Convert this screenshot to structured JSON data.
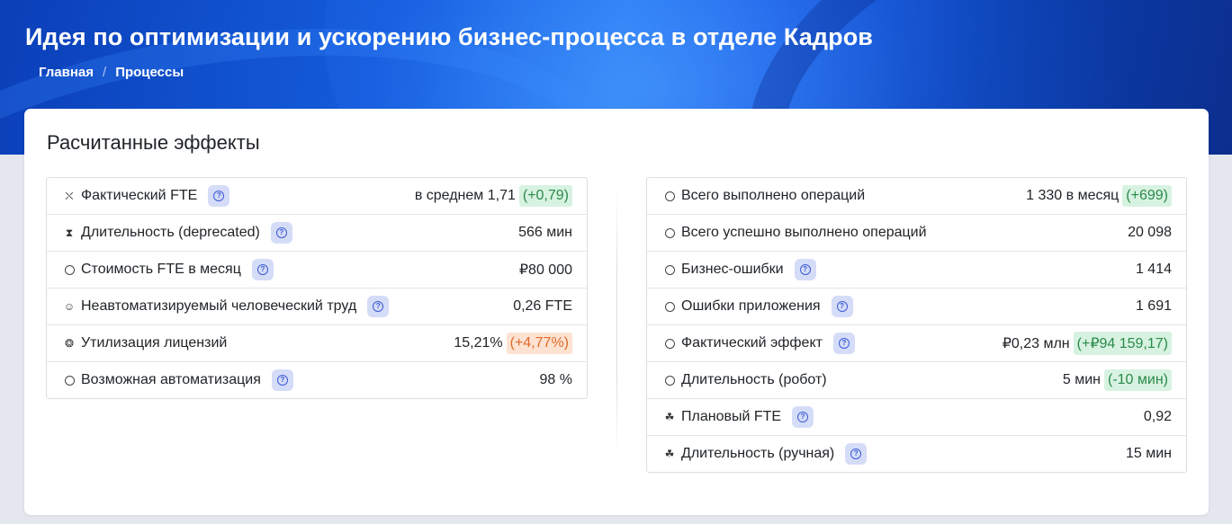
{
  "header": {
    "title": "Идея по оптимизации и ускорению бизнес-процесса в отделе Кадров",
    "breadcrumb": [
      "Главная",
      "/",
      "Процессы"
    ]
  },
  "card": {
    "title": "Расчитанные эффекты"
  },
  "left_metrics": [
    {
      "icon": "fte-icon",
      "label": "Фактический FTE",
      "help": true,
      "value": "в среднем 1,71",
      "delta": "(+0,79)",
      "delta_color": "green"
    },
    {
      "icon": "hourglass-icon",
      "label": "Длительность (deprecated)",
      "help": true,
      "value": "566  мин"
    },
    {
      "icon": "circle-icon",
      "label": "Стоимость FTE в месяц",
      "help": true,
      "value": "₽80 000"
    },
    {
      "icon": "smile-icon",
      "label": "Неавтоматизируемый человеческий труд",
      "help": true,
      "value": "0,26 FTE"
    },
    {
      "icon": "license-icon",
      "label": "Утилизация лицензий",
      "help": false,
      "value": "15,21%",
      "delta": "(+4,77%)",
      "delta_color": "orange"
    },
    {
      "icon": "circle-icon",
      "label": "Возможная автоматизация",
      "help": true,
      "value": "98 %"
    }
  ],
  "right_metrics": [
    {
      "icon": "circle-icon",
      "label": "Всего выполнено операций",
      "help": false,
      "value": "1 330 в месяц",
      "delta": "(+699)",
      "delta_color": "green"
    },
    {
      "icon": "circle-icon",
      "label": "Всего успешно выполнено операций",
      "help": false,
      "value": "20 098"
    },
    {
      "icon": "circle-icon",
      "label": "Бизнес-ошибки",
      "help": true,
      "value": "1 414"
    },
    {
      "icon": "circle-icon",
      "label": "Ошибки приложения",
      "help": true,
      "value": "1 691"
    },
    {
      "icon": "circle-icon",
      "label": "Фактический эффект",
      "help": true,
      "value": "₽0,23 млн",
      "delta": "(+₽94 159,17)",
      "delta_color": "green"
    },
    {
      "icon": "circle-icon",
      "label": "Длительность (робот)",
      "help": false,
      "value": "5 мин",
      "delta": "(-10 мин)",
      "delta_color": "green"
    },
    {
      "icon": "team-icon",
      "label": "Плановый FTE",
      "help": true,
      "value": "0,92"
    },
    {
      "icon": "team-icon",
      "label": "Длительность (ручная)",
      "help": true,
      "value": "15  мин"
    }
  ],
  "colors": {
    "accent": "#1a5ee6",
    "help_bg": "#d5dcf7",
    "delta_green_bg": "#d7f2e1",
    "delta_orange_bg": "#fde2d2"
  }
}
